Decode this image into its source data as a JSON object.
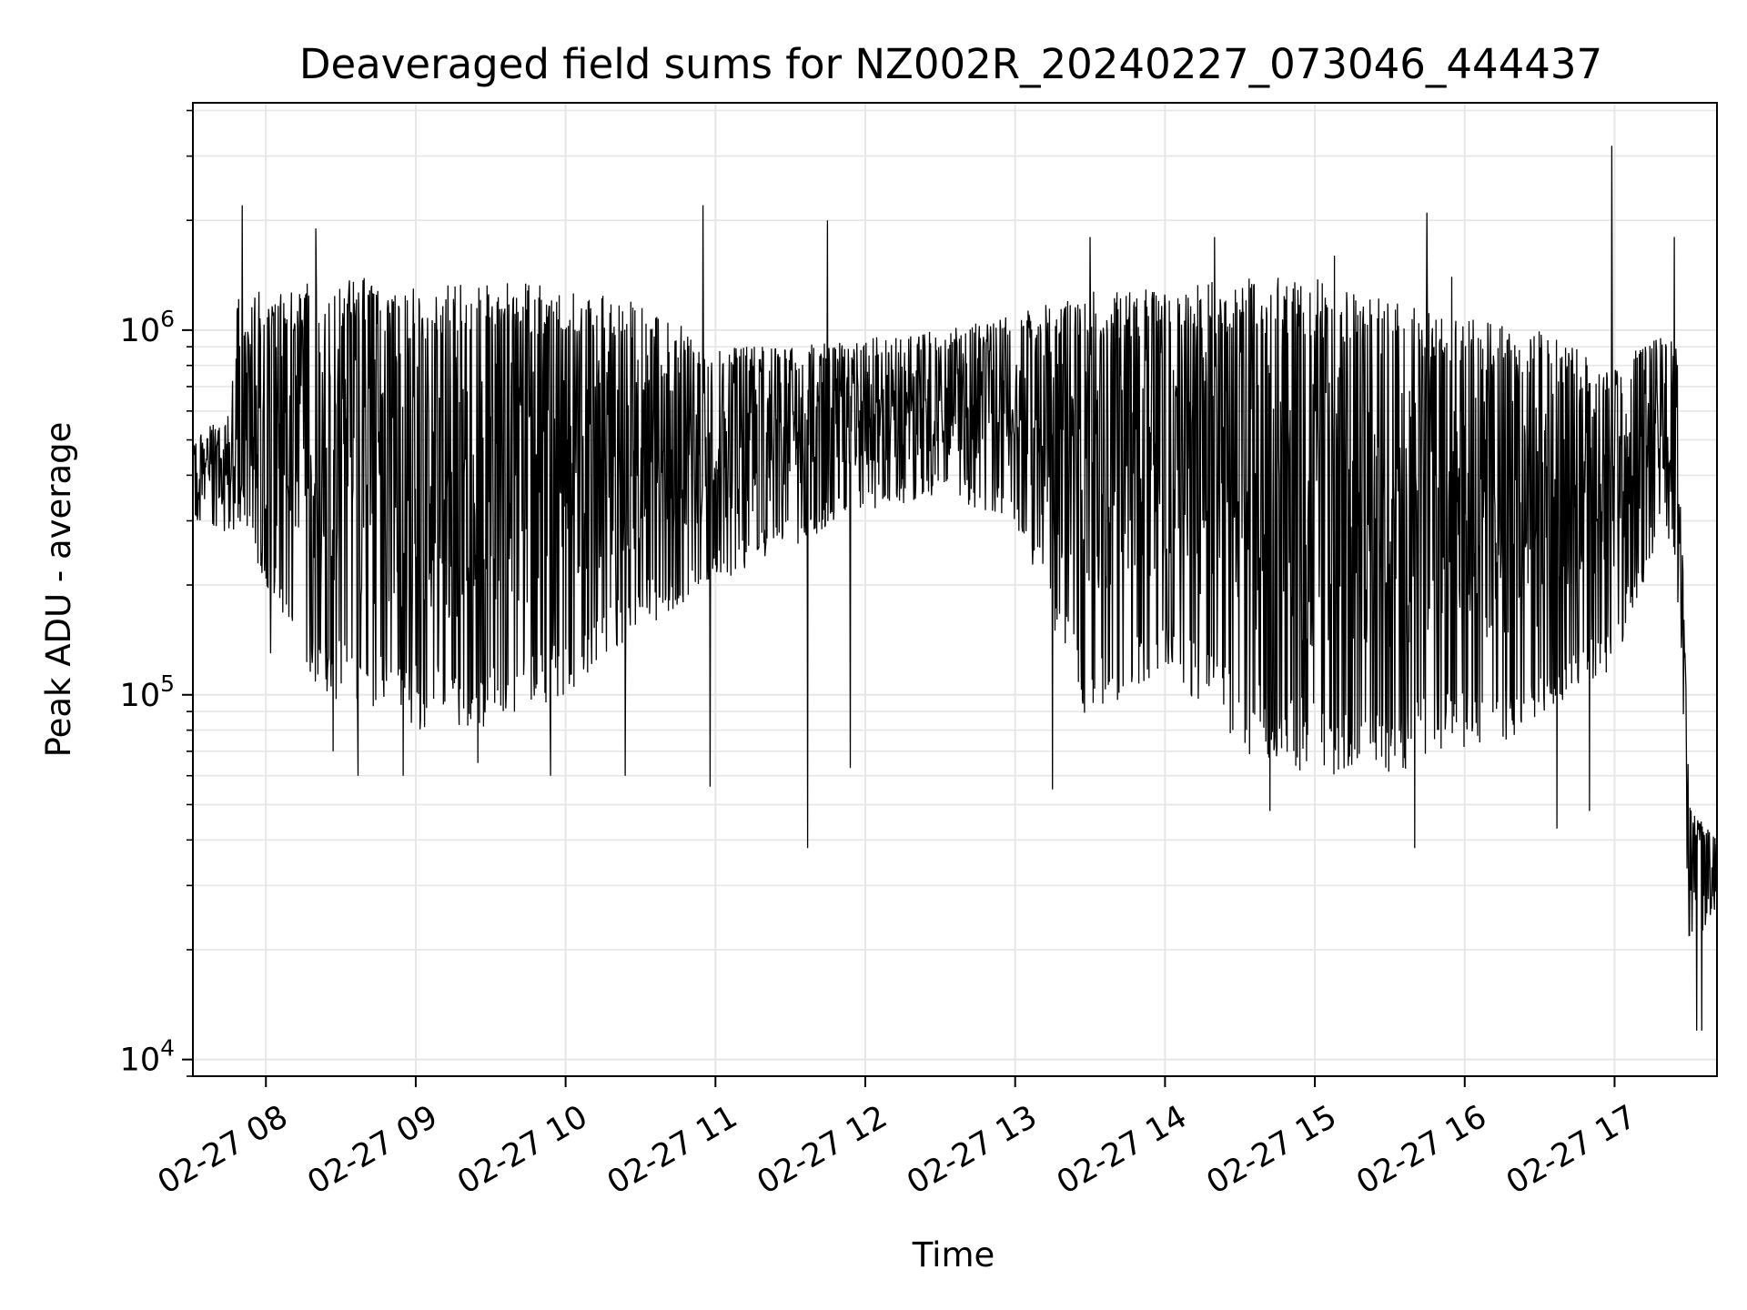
{
  "chart_data": {
    "type": "line",
    "title": "Deaveraged field sums for NZ002R_20240227_073046_444437",
    "xlabel": "Time",
    "ylabel": "Peak ADU - average",
    "yscale": "log",
    "ylim": [
      9000,
      4200000
    ],
    "xlim": [
      "2024-02-27 07:30:46",
      "2024-02-27 17:41:00"
    ],
    "grid": true,
    "color": "#000000",
    "x_ticks": [
      {
        "t": "2024-02-27 08:00",
        "label": "02-27 08"
      },
      {
        "t": "2024-02-27 09:00",
        "label": "02-27 09"
      },
      {
        "t": "2024-02-27 10:00",
        "label": "02-27 10"
      },
      {
        "t": "2024-02-27 11:00",
        "label": "02-27 11"
      },
      {
        "t": "2024-02-27 12:00",
        "label": "02-27 12"
      },
      {
        "t": "2024-02-27 13:00",
        "label": "02-27 13"
      },
      {
        "t": "2024-02-27 14:00",
        "label": "02-27 14"
      },
      {
        "t": "2024-02-27 15:00",
        "label": "02-27 15"
      },
      {
        "t": "2024-02-27 16:00",
        "label": "02-27 16"
      },
      {
        "t": "2024-02-27 17:00",
        "label": "02-27 17"
      }
    ],
    "y_ticks": [
      {
        "value": 10000,
        "base": "10",
        "exp": "4"
      },
      {
        "value": 100000,
        "base": "10",
        "exp": "5"
      },
      {
        "value": 1000000,
        "base": "10",
        "exp": "6"
      }
    ],
    "envelope": {
      "x": [
        "2024-02-27 07:31",
        "2024-02-27 07:45",
        "2024-02-27 07:50",
        "2024-02-27 08:00",
        "2024-02-27 08:20",
        "2024-02-27 08:40",
        "2024-02-27 09:00",
        "2024-02-27 09:30",
        "2024-02-27 10:00",
        "2024-02-27 10:30",
        "2024-02-27 11:00",
        "2024-02-27 11:30",
        "2024-02-27 12:00",
        "2024-02-27 12:30",
        "2024-02-27 13:00",
        "2024-02-27 13:30",
        "2024-02-27 14:00",
        "2024-02-27 14:30",
        "2024-02-27 15:00",
        "2024-02-27 15:30",
        "2024-02-27 16:00",
        "2024-02-27 16:30",
        "2024-02-27 17:00",
        "2024-02-27 17:20",
        "2024-02-27 17:25",
        "2024-02-27 17:30",
        "2024-02-27 17:41"
      ],
      "upper": [
        500000,
        600000,
        1500000,
        1200000,
        1400000,
        1400000,
        1300000,
        1400000,
        1300000,
        1200000,
        900000,
        900000,
        950000,
        1000000,
        1100000,
        1300000,
        1300000,
        1400000,
        1400000,
        1200000,
        1100000,
        1000000,
        800000,
        1000000,
        900000,
        50000,
        40000
      ],
      "lower": [
        300000,
        270000,
        300000,
        200000,
        100000,
        90000,
        80000,
        80000,
        100000,
        150000,
        200000,
        250000,
        320000,
        350000,
        300000,
        80000,
        120000,
        70000,
        60000,
        60000,
        70000,
        80000,
        120000,
        300000,
        200000,
        20000,
        25000
      ]
    },
    "spikes": [
      {
        "t": "2024-02-27 07:50:30",
        "value": 2200000
      },
      {
        "t": "2024-02-27 08:02:00",
        "value": 130000
      },
      {
        "t": "2024-02-27 08:20:00",
        "value": 1900000
      },
      {
        "t": "2024-02-27 08:27:00",
        "value": 70000
      },
      {
        "t": "2024-02-27 08:37:00",
        "value": 60000
      },
      {
        "t": "2024-02-27 08:55:00",
        "value": 60000
      },
      {
        "t": "2024-02-27 09:25:00",
        "value": 65000
      },
      {
        "t": "2024-02-27 09:54:00",
        "value": 60000
      },
      {
        "t": "2024-02-27 10:24:00",
        "value": 60000
      },
      {
        "t": "2024-02-27 10:55:00",
        "value": 2200000
      },
      {
        "t": "2024-02-27 10:58:00",
        "value": 56000
      },
      {
        "t": "2024-02-27 11:37:00",
        "value": 38000
      },
      {
        "t": "2024-02-27 11:45:00",
        "value": 2000000
      },
      {
        "t": "2024-02-27 11:54:00",
        "value": 63000
      },
      {
        "t": "2024-02-27 13:15:00",
        "value": 55000
      },
      {
        "t": "2024-02-27 13:30:00",
        "value": 1800000
      },
      {
        "t": "2024-02-27 14:20:00",
        "value": 1800000
      },
      {
        "t": "2024-02-27 14:42:00",
        "value": 48000
      },
      {
        "t": "2024-02-27 15:08:00",
        "value": 1600000
      },
      {
        "t": "2024-02-27 15:40:00",
        "value": 38000
      },
      {
        "t": "2024-02-27 15:45:00",
        "value": 2100000
      },
      {
        "t": "2024-02-27 15:55:00",
        "value": 1400000
      },
      {
        "t": "2024-02-27 16:37:00",
        "value": 43000
      },
      {
        "t": "2024-02-27 16:50:00",
        "value": 48000
      },
      {
        "t": "2024-02-27 16:59:00",
        "value": 3200000
      },
      {
        "t": "2024-02-27 17:24:00",
        "value": 1800000
      },
      {
        "t": "2024-02-27 17:33:00",
        "value": 12000
      },
      {
        "t": "2024-02-27 17:35:00",
        "value": 12000
      },
      {
        "t": "2024-02-27 17:38:00",
        "value": 42000
      }
    ]
  }
}
